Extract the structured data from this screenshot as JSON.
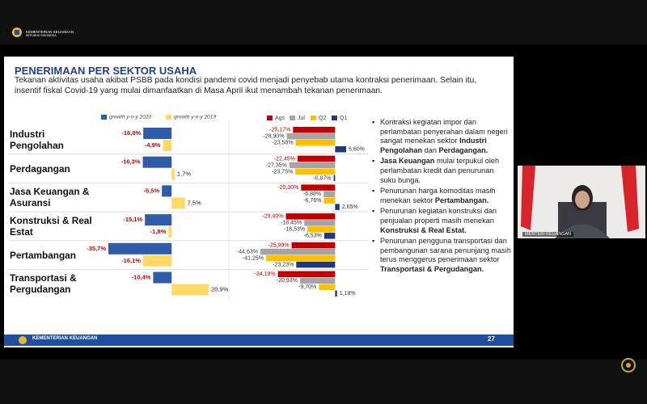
{
  "header": {
    "logo_title": "KEMENTERIAN KEUANGAN",
    "logo_subtitle": "REPUBLIK INDONESIA"
  },
  "slide": {
    "title": "PENERIMAAN PER SEKTOR USAHA",
    "subtitle": "Tekanan aktivitas usaha akibat PSBB pada kondisi pandemi covid menjadi penyebab utama kontraksi penerimaan. Selain itu, insentif fiskal Covid-19 yang mulai dimanfaatkan di Masa April ikut menambah tekanan penerimaan.",
    "bullets": [
      [
        "Kontraksi kegiatan impor dan perlambatan penyerahan dalam negeri sangat menekan sektor ",
        "Industri Pengolahan",
        " dan ",
        "Perdagangan",
        "."
      ],
      [
        "Jasa Keuangan",
        " mulai terpukul oleh perlambatan kredit dan penurunan suku bunga."
      ],
      [
        "Penurunan harga komoditas masih menekan sektor ",
        "Pertambangan",
        "."
      ],
      [
        "Penurunan kegiatan konstruksi dan penjualan properti masih menekan ",
        "Konstruksi & Real Estat",
        "."
      ],
      [
        "Penurunan pengguna transportasi dan pembangunan sarana penunjang masih terus menggerus penerimaan sektor ",
        "Transportasi & Pergudangan",
        "."
      ]
    ],
    "footer": "KEMENTERIAN KEUANGAN",
    "page_number": "27"
  },
  "video": {
    "caption": "MENTERI KEUANGAN"
  },
  "chart_data": [
    {
      "type": "bar",
      "orientation": "horizontal",
      "categories": [
        "Industri Pengolahan",
        "Perdagangan",
        "Jasa Keuangan & Asuransi",
        "Konstruksi & Real Estat",
        "Pertambangan",
        "Transportasi & Pergudangan"
      ],
      "series": [
        {
          "name": "growth y-o-y 2020",
          "color": "#2f5ca8",
          "values": [
            -16.0,
            -16.3,
            -5.5,
            -15.1,
            -35.7,
            -10.4
          ],
          "value_labels": [
            "-16,0%",
            "-16,3%",
            "-5,5%",
            "-15,1%",
            "-35,7%",
            "-10,4%"
          ]
        },
        {
          "name": "growth y-o-y 2019",
          "color": "#ffd966",
          "values": [
            -4.9,
            1.7,
            7.5,
            -1.8,
            -16.1,
            20.9
          ],
          "value_labels": [
            "-4,9%",
            "1,7%",
            "7,5%",
            "-1,8%",
            "-16,1%",
            "20,9%"
          ]
        }
      ]
    },
    {
      "type": "bar",
      "orientation": "horizontal",
      "series": [
        {
          "name": "Ags",
          "color": "#c00000",
          "values": [
            -25.17,
            -22.45,
            -20.3,
            -29.4,
            -25.99,
            -34.19
          ],
          "value_labels": [
            "-25,17%",
            "-22,45%",
            "-20,30%",
            "-29,40%",
            "-25,99%",
            "-34,19%"
          ]
        },
        {
          "name": "Jul",
          "color": "#a5a5a5",
          "values": [
            -28.9,
            -27.35,
            -6.88,
            -18.45,
            -44.63,
            -20.93
          ],
          "value_labels": [
            "-28,90%",
            "-27,35%",
            "-6,88%",
            "-18,45%",
            "-44,63%",
            "-20,93%"
          ]
        },
        {
          "name": "Q2",
          "color": "#ffc000",
          "values": [
            -23.58,
            -23.75,
            -6.76,
            -16.53,
            -41.25,
            -9.7
          ],
          "value_labels": [
            "-23,58%",
            "-23,75%",
            "-6,76%",
            "-16,53%",
            "-41,25%",
            "-9,70%"
          ]
        },
        {
          "name": "Q1",
          "color": "#1f3a7a",
          "values": [
            6.6,
            -0.87,
            2.65,
            -6.53,
            -23.23,
            1.18
          ],
          "value_labels": [
            "6,60%",
            "-0,87%",
            "2,65%",
            "-6,53%",
            "-23,23%",
            "1,18%"
          ]
        }
      ]
    }
  ]
}
